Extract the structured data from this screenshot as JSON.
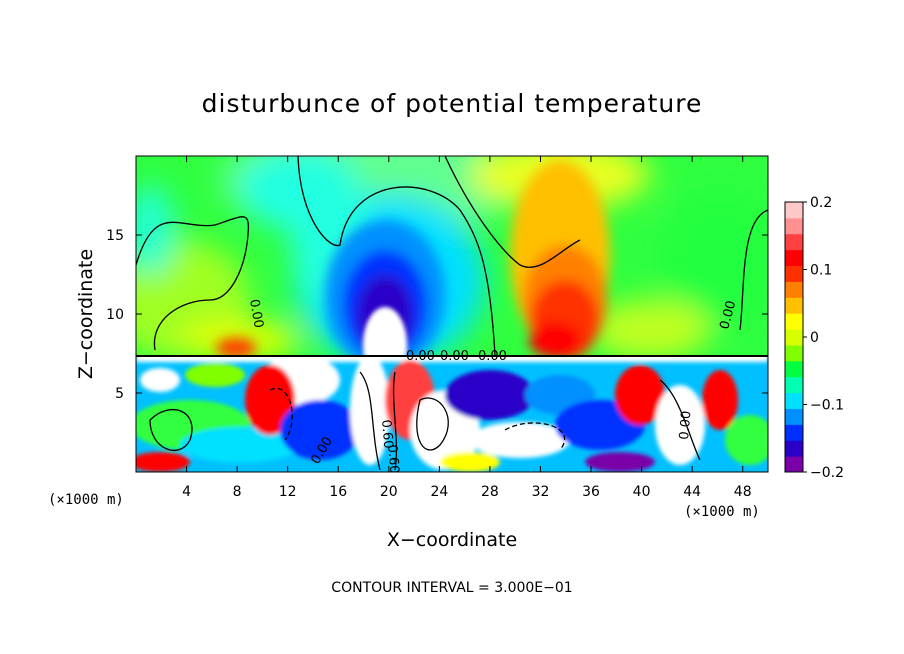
{
  "chart_data": {
    "type": "heatmap",
    "title": "disturbunce of potential temperature",
    "xlabel": "X−coordinate",
    "ylabel": "Z−coordinate",
    "x_unit_left": "(×1000 m)",
    "x_unit_right": "(×1000 m)",
    "xlim": [
      0,
      50
    ],
    "ylim": [
      0,
      20
    ],
    "x_ticks": [
      4,
      8,
      12,
      16,
      20,
      24,
      28,
      32,
      36,
      40,
      44,
      48
    ],
    "x_tick_labels": [
      "4",
      "8",
      "12",
      "16",
      "20",
      "24",
      "28",
      "32",
      "36",
      "40",
      "44",
      "48"
    ],
    "y_ticks": [
      5,
      10,
      15
    ],
    "y_tick_labels": [
      "5",
      "10",
      "15"
    ],
    "colorbar": {
      "range": [
        -0.2,
        0.2
      ],
      "ticks": [
        0.2,
        0.1,
        0,
        -0.1,
        -0.2
      ],
      "tick_labels": [
        "0.2",
        "0.1",
        "0",
        "−0.1",
        "−0.2"
      ],
      "colors": [
        "#7a00a8",
        "#2a00c8",
        "#0030ff",
        "#0090ff",
        "#00e0ff",
        "#00ffb0",
        "#00ff40",
        "#80ff00",
        "#d8ff00",
        "#ffff00",
        "#ffc000",
        "#ff8000",
        "#ff3000",
        "#ff0000",
        "#ff4040",
        "#ff9090",
        "#ffc8c8"
      ]
    },
    "contour_interval_text": "CONTOUR INTERVAL = 3.000E−01",
    "contour_labels": [
      "0.00",
      "0.00",
      "0.00",
      "0.00",
      "0.00",
      "0.00",
      "0.60",
      "0.60",
      "0.00"
    ],
    "features": [
      {
        "name": "cold anomaly aloft",
        "x": 20,
        "z": 11,
        "value": -0.2
      },
      {
        "name": "warm anomaly aloft",
        "x": 35,
        "z": 10,
        "value": 0.15
      },
      {
        "name": "warm plume core",
        "x": 20,
        "z": 9,
        "value": 0.3
      }
    ],
    "grid": false
  }
}
